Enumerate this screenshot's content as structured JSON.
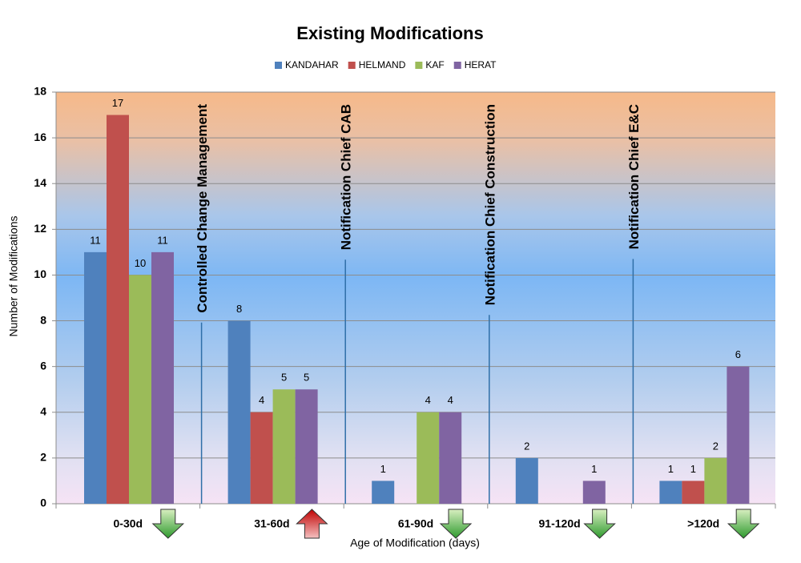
{
  "chart_data": {
    "type": "bar",
    "title": "Existing  Modifications",
    "x_label": "Age of Modification (days)",
    "y_label": "Number of Modifications",
    "categories": [
      "0-30d",
      "31-60d",
      "61-90d",
      "91-120d",
      ">120d"
    ],
    "series": [
      {
        "name": "KANDAHAR",
        "color": "#4f81bd",
        "values": [
          11,
          8,
          1,
          2,
          1
        ]
      },
      {
        "name": "HELMAND",
        "color": "#c0504d",
        "values": [
          17,
          4,
          null,
          null,
          1
        ]
      },
      {
        "name": "KAF",
        "color": "#9bbb59",
        "values": [
          10,
          5,
          4,
          null,
          2
        ]
      },
      {
        "name": "HERAT",
        "color": "#8064a2",
        "values": [
          11,
          5,
          4,
          1,
          6
        ]
      }
    ],
    "ylim": [
      0,
      18
    ],
    "yticks": [
      0,
      2,
      4,
      6,
      8,
      10,
      12,
      14,
      16,
      18
    ],
    "grid": true,
    "legend": "top",
    "annotations": [
      "Controlled Change Management",
      "Notification Chief CAB",
      "Notification Chief Construction",
      "Notification Chief E&C"
    ],
    "trend_arrows": [
      "down",
      "up",
      "down",
      "down",
      "down"
    ]
  }
}
